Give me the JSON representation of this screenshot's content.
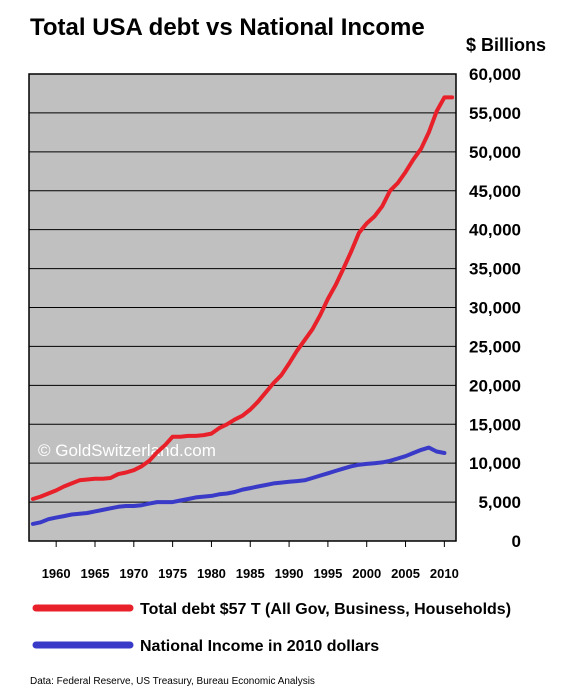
{
  "chart_data": {
    "type": "line",
    "title": "Total USA debt vs National Income",
    "ylabel": "$ Billions",
    "xlabel": "",
    "xlim": [
      1956.5,
      2011.5
    ],
    "ylim": [
      0,
      60000
    ],
    "grid": true,
    "legend_position": "bottom",
    "watermark": "© GoldSwitzerland.com",
    "source": "Data: Federal Reserve, US Treasury, Bureau Economic Analysis",
    "x_ticks": [
      "1960",
      "1965",
      "1970",
      "1975",
      "1980",
      "1985",
      "1990",
      "1995",
      "2000",
      "2005",
      "2010"
    ],
    "x_tick_values": [
      1960,
      1965,
      1970,
      1975,
      1980,
      1985,
      1990,
      1995,
      2000,
      2005,
      2010
    ],
    "y_ticks": [
      "0",
      "5,000",
      "10,000",
      "15,000",
      "20,000",
      "25,000",
      "30,000",
      "35,000",
      "40,000",
      "45,000",
      "50,000",
      "55,000",
      "60,000"
    ],
    "y_tick_values": [
      0,
      5000,
      10000,
      15000,
      20000,
      25000,
      30000,
      35000,
      40000,
      45000,
      50000,
      55000,
      60000
    ],
    "series": [
      {
        "name": "Total debt $57 T  (All Gov, Business, Households)",
        "color": "#e8202a",
        "x": [
          1957,
          1958,
          1959,
          1960,
          1961,
          1962,
          1963,
          1964,
          1965,
          1966,
          1967,
          1968,
          1969,
          1970,
          1971,
          1972,
          1973,
          1974,
          1975,
          1976,
          1977,
          1978,
          1979,
          1980,
          1981,
          1982,
          1983,
          1984,
          1985,
          1986,
          1987,
          1988,
          1989,
          1990,
          1991,
          1992,
          1993,
          1994,
          1995,
          1996,
          1997,
          1998,
          1999,
          2000,
          2001,
          2002,
          2003,
          2004,
          2005,
          2006,
          2007,
          2008,
          2009,
          2010,
          2011
        ],
        "y": [
          5400,
          5700,
          6100,
          6500,
          7000,
          7400,
          7800,
          7900,
          8000,
          8000,
          8100,
          8600,
          8800,
          9100,
          9600,
          10300,
          11400,
          12300,
          13400,
          13400,
          13500,
          13500,
          13600,
          13800,
          14500,
          15000,
          15600,
          16100,
          16900,
          17900,
          19100,
          20300,
          21300,
          22800,
          24400,
          25800,
          27200,
          29000,
          31100,
          32900,
          35000,
          37200,
          39600,
          40800,
          41700,
          43000,
          45000,
          46000,
          47400,
          49000,
          50400,
          52500,
          55200,
          57000,
          57000
        ]
      },
      {
        "name": "National Income in 2010 dollars",
        "color": "#3a3ac8",
        "x": [
          1957,
          1958,
          1959,
          1960,
          1961,
          1962,
          1963,
          1964,
          1965,
          1966,
          1967,
          1968,
          1969,
          1970,
          1971,
          1972,
          1973,
          1974,
          1975,
          1976,
          1977,
          1978,
          1979,
          1980,
          1981,
          1982,
          1983,
          1984,
          1985,
          1986,
          1987,
          1988,
          1989,
          1990,
          1991,
          1992,
          1993,
          1994,
          1995,
          1996,
          1997,
          1998,
          1999,
          2000,
          2001,
          2002,
          2003,
          2004,
          2005,
          2006,
          2007,
          2008,
          2009,
          2010
        ],
        "y": [
          2200,
          2400,
          2800,
          3000,
          3200,
          3400,
          3500,
          3600,
          3800,
          4000,
          4200,
          4400,
          4500,
          4500,
          4600,
          4800,
          5000,
          5000,
          5000,
          5200,
          5400,
          5600,
          5700,
          5800,
          6000,
          6100,
          6300,
          6600,
          6800,
          7000,
          7200,
          7400,
          7500,
          7600,
          7700,
          7800,
          8100,
          8400,
          8700,
          9000,
          9300,
          9600,
          9800,
          9900,
          10000,
          10100,
          10300,
          10600,
          10900,
          11300,
          11700,
          12000,
          11500,
          11300
        ]
      }
    ]
  }
}
